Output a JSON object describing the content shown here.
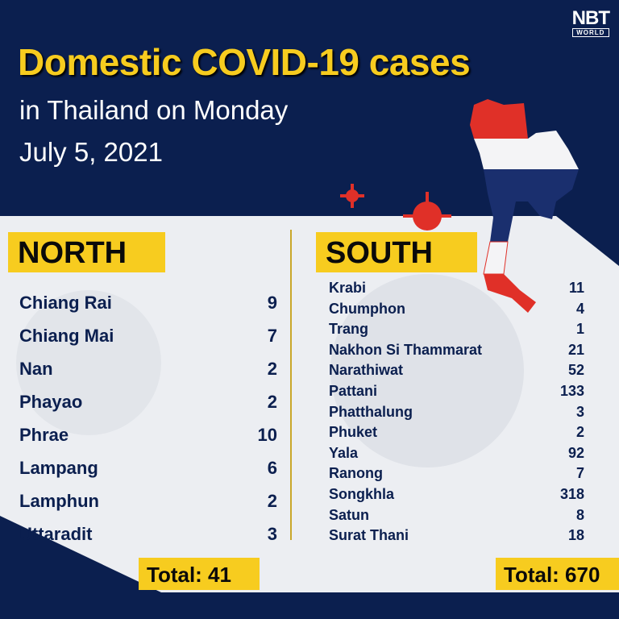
{
  "logo": {
    "line1": "NBT",
    "line2": "WORLD"
  },
  "title": "Domestic COVID-19 cases",
  "subtitle1": "in Thailand on Monday",
  "subtitle2": "July 5, 2021",
  "colors": {
    "navy": "#0b1f4f",
    "yellow": "#f7cc1f",
    "red": "#e03028",
    "panel": "#eceef2"
  },
  "north": {
    "header": "NORTH",
    "total": "Total: 41",
    "rows": [
      {
        "name": "Chiang Rai",
        "value": "9"
      },
      {
        "name": "Chiang Mai",
        "value": "7"
      },
      {
        "name": "Nan",
        "value": "2"
      },
      {
        "name": "Phayao",
        "value": "2"
      },
      {
        "name": "Phrae",
        "value": "10"
      },
      {
        "name": "Lampang",
        "value": "6"
      },
      {
        "name": "Lamphun",
        "value": "2"
      },
      {
        "name": "Uttaradit",
        "value": "3"
      }
    ]
  },
  "south": {
    "header": "SOUTH",
    "total": "Total: 670",
    "rows": [
      {
        "name": "Krabi",
        "value": "11"
      },
      {
        "name": "Chumphon",
        "value": "4"
      },
      {
        "name": "Trang",
        "value": "1"
      },
      {
        "name": "Nakhon Si Thammarat",
        "value": "21"
      },
      {
        "name": "Narathiwat",
        "value": "52"
      },
      {
        "name": "Pattani",
        "value": "133"
      },
      {
        "name": "Phatthalung",
        "value": "3"
      },
      {
        "name": "Phuket",
        "value": "2"
      },
      {
        "name": "Yala",
        "value": "92"
      },
      {
        "name": "Ranong",
        "value": "7"
      },
      {
        "name": "Songkhla",
        "value": "318"
      },
      {
        "name": "Satun",
        "value": "8"
      },
      {
        "name": "Surat Thani",
        "value": "18"
      }
    ]
  }
}
